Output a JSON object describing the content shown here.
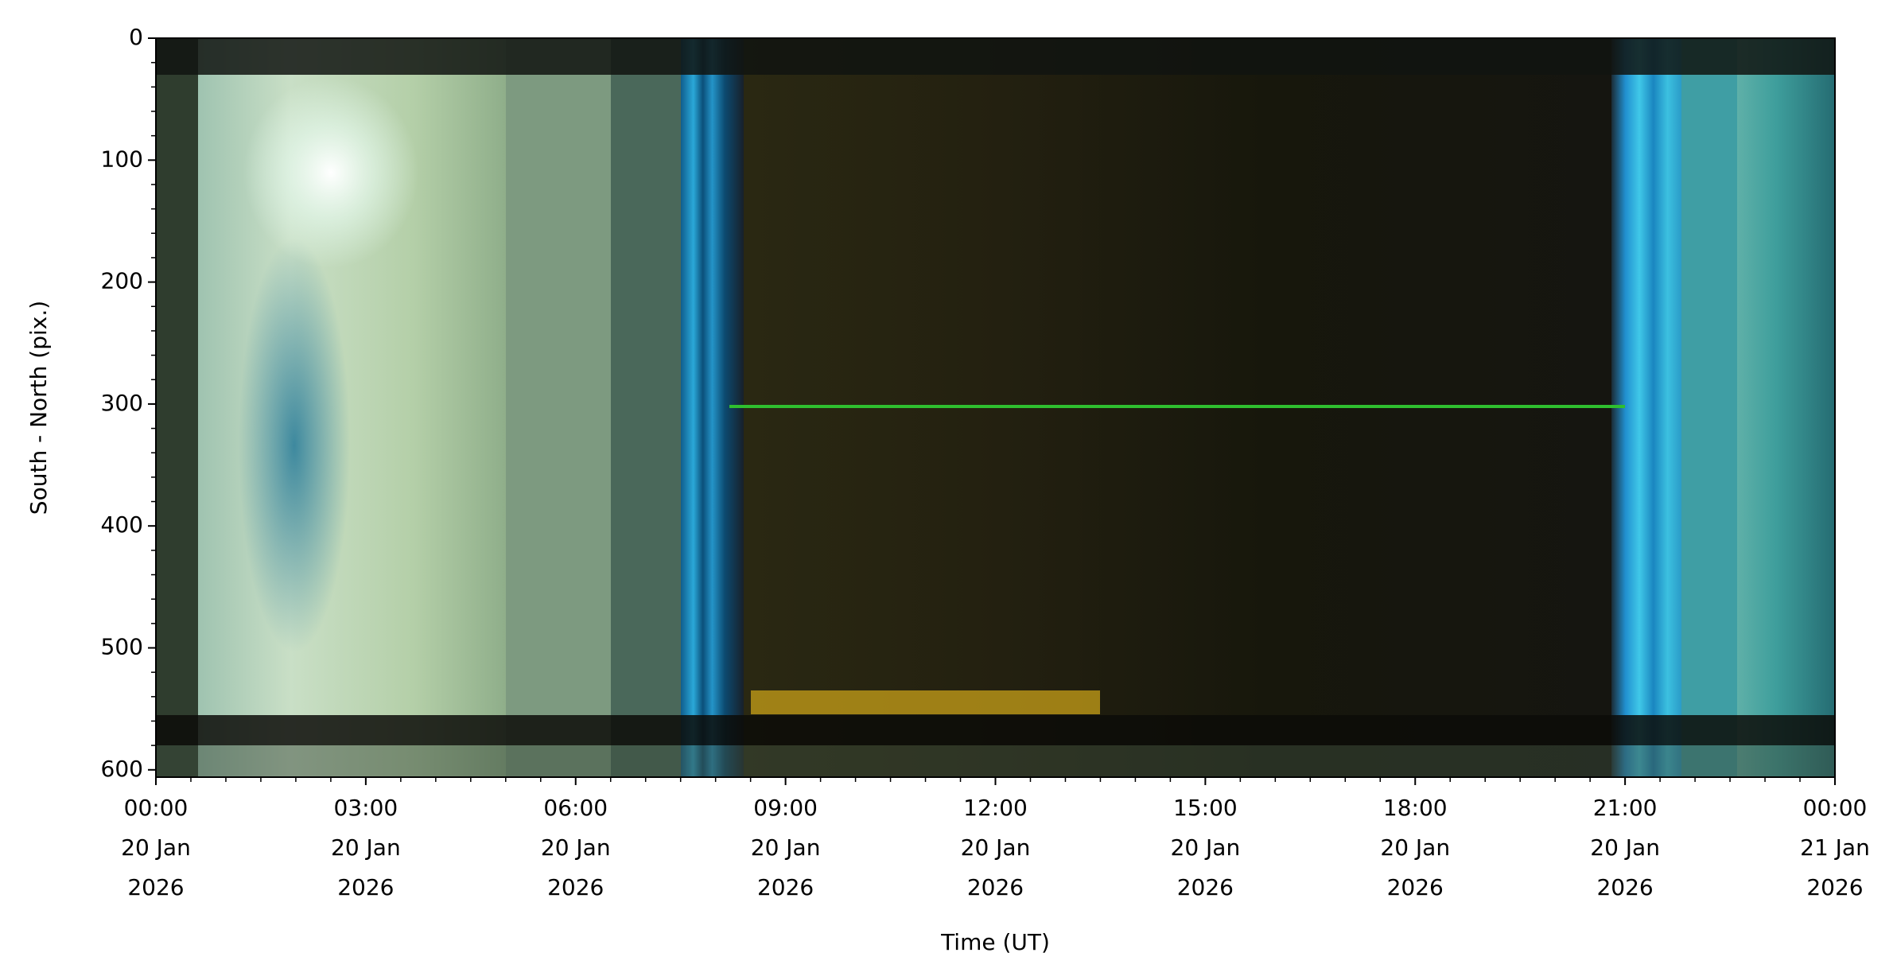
{
  "chart_data": {
    "type": "keogram",
    "xlabel": "Time (UT)",
    "ylabel": "South - North (pix.)",
    "xlim": [
      "2026-01-20T00:00:00Z",
      "2026-01-21T00:00:00Z"
    ],
    "xticks": [
      {
        "value": "2026-01-20T00:00:00Z",
        "label": [
          "00:00",
          "20 Jan",
          "2026"
        ]
      },
      {
        "value": "2026-01-20T03:00:00Z",
        "label": [
          "03:00",
          "20 Jan",
          "2026"
        ]
      },
      {
        "value": "2026-01-20T06:00:00Z",
        "label": [
          "06:00",
          "20 Jan",
          "2026"
        ]
      },
      {
        "value": "2026-01-20T09:00:00Z",
        "label": [
          "09:00",
          "20 Jan",
          "2026"
        ]
      },
      {
        "value": "2026-01-20T12:00:00Z",
        "label": [
          "12:00",
          "20 Jan",
          "2026"
        ]
      },
      {
        "value": "2026-01-20T15:00:00Z",
        "label": [
          "15:00",
          "20 Jan",
          "2026"
        ]
      },
      {
        "value": "2026-01-20T18:00:00Z",
        "label": [
          "18:00",
          "20 Jan",
          "2026"
        ]
      },
      {
        "value": "2026-01-20T21:00:00Z",
        "label": [
          "21:00",
          "20 Jan",
          "2026"
        ]
      },
      {
        "value": "2026-01-21T00:00:00Z",
        "label": [
          "00:00",
          "21 Jan",
          "2026"
        ]
      }
    ],
    "ylim": [
      0,
      606
    ],
    "y_inverted": true,
    "yticks": [
      0,
      100,
      200,
      300,
      400,
      500,
      600
    ],
    "y_minor_step": 20,
    "x_minor_step_hours": 0.5
  }
}
